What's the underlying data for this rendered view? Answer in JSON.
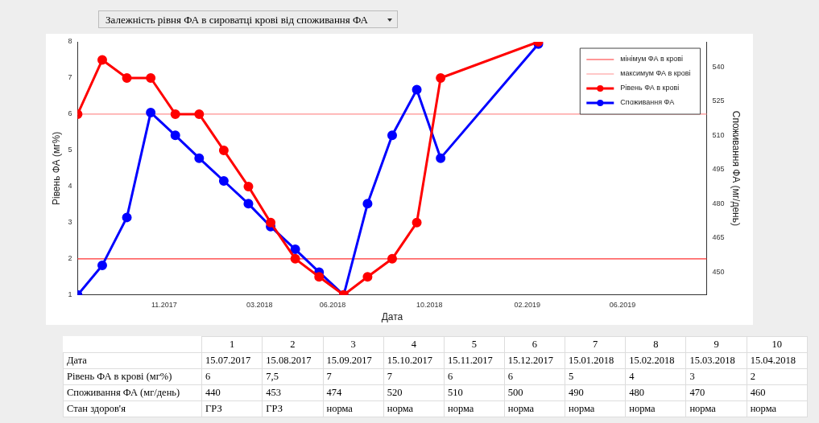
{
  "chart_data": {
    "type": "line",
    "title": "Залежність рівня ФА в сироватці крові від споживання ФА",
    "xlabel": "Дата",
    "ylabel": "Рівень ФА (мг%)",
    "y2label": "Споживання ФА (мг/день)",
    "x": [
      "2017-07-15",
      "2017-08-15",
      "2017-09-15",
      "2017-10-15",
      "2017-11-15",
      "2017-12-15",
      "2018-01-15",
      "2018-02-15",
      "2018-03-15",
      "2018-04-15",
      "2018-05-15",
      "2018-06-15",
      "2018-07-15",
      "2018-08-15",
      "2018-09-15",
      "2018-10-15",
      "2019-02-15"
    ],
    "series": [
      {
        "name": "Рівень ФА в крові",
        "color": "#ff0000",
        "values": [
          6,
          7.5,
          7,
          7,
          6,
          6,
          5,
          4,
          3,
          2,
          1.5,
          1,
          1.5,
          2,
          3,
          7,
          8
        ]
      },
      {
        "name": "Споживання ФА",
        "color": "#0000ff",
        "axis": "y2",
        "values": [
          440,
          453,
          474,
          520,
          510,
          500,
          490,
          480,
          470,
          460,
          450,
          440,
          480,
          510,
          530,
          500,
          550
        ]
      }
    ],
    "xlim": [
      "2017-07-15",
      "2019-09-15"
    ],
    "xticks": [
      {
        "value": "2017-11-01",
        "label": "11.2017"
      },
      {
        "value": "2018-03-01",
        "label": "03.2018"
      },
      {
        "value": "2018-06-01",
        "label": "06.2018"
      },
      {
        "value": "2018-10-01",
        "label": "10.2018"
      },
      {
        "value": "2019-02-01",
        "label": "02.2019"
      },
      {
        "value": "2019-06-01",
        "label": "06.2019"
      }
    ],
    "ylim": [
      1,
      8
    ],
    "yticks": [
      1,
      2,
      3,
      4,
      5,
      6,
      7,
      8
    ],
    "y2lim": [
      440,
      551
    ],
    "y2ticks": [
      450,
      465,
      480,
      495,
      510,
      525,
      540
    ],
    "ref_lines": [
      {
        "axis": "y",
        "value": 2,
        "label": "мінімум ФА в крові",
        "color": "#ff3030"
      },
      {
        "axis": "y",
        "value": 6,
        "label": "максимум ФА в крові",
        "color": "#ff9090"
      }
    ],
    "annotations": [
      "Дата",
      "Рівень ФА в крові (мг%)",
      "Споживання ФА (мг/день)",
      "Стан здоров'я",
      "1",
      "2",
      "3",
      "4",
      "5",
      "6",
      "7",
      "8",
      "9",
      "10",
      "15.07.2017",
      "15.08.2017",
      "15.09.2017",
      "15.10.2017",
      "15.11.2017",
      "15.12.2017",
      "15.01.2018",
      "15.02.2018",
      "15.03.2018",
      "15.04.2018",
      "6",
      "7,5",
      "7",
      "7",
      "6",
      "6",
      "5",
      "4",
      "3",
      "2",
      "440",
      "453",
      "474",
      "520",
      "510",
      "500",
      "490",
      "480",
      "470",
      "460",
      "ГРЗ",
      "ГРЗ",
      "норма",
      "норма",
      "норма",
      "норма",
      "норма",
      "норма",
      "норма",
      "норма"
    ],
    "legend": "top right",
    "marker": "circle",
    "line_style": "solid",
    "grid": false
  }
}
